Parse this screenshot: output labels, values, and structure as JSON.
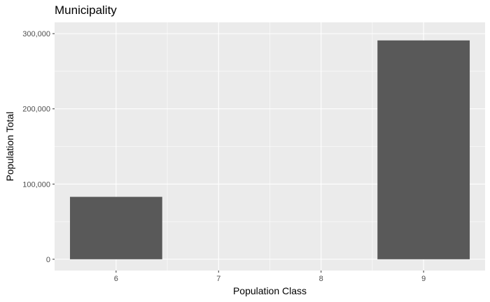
{
  "chart_data": {
    "type": "bar",
    "title": "Municipality",
    "xlabel": "Population Class",
    "ylabel": "Population Total",
    "categories": [
      "6",
      "7",
      "8",
      "9"
    ],
    "values": [
      83000,
      0,
      0,
      291000
    ],
    "ylim": [
      0,
      300000
    ],
    "yticks": [
      0,
      100000,
      200000,
      300000
    ],
    "ytick_labels": [
      "0",
      "100,000",
      "200,000",
      "300,000"
    ],
    "grid": true,
    "legend": "none",
    "colors": {
      "bar": "#595959",
      "panel": "#ebebeb",
      "grid": "#ffffff"
    }
  }
}
